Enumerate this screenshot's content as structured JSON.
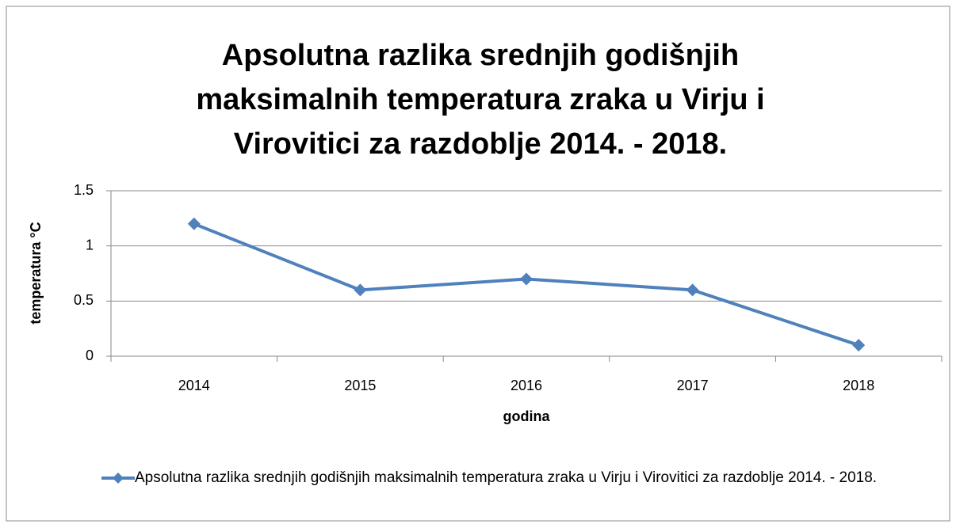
{
  "chart_data": {
    "type": "line",
    "title": "Apsolutna razlika srednjih godišnjih maksimalnih temperatura zraka u Virju i Virovitici za razdoblje 2014. - 2018.",
    "x_label": "godina",
    "y_label": "temperatura °C",
    "categories": [
      "2014",
      "2015",
      "2016",
      "2017",
      "2018"
    ],
    "series": [
      {
        "name": "Apsolutna razlika srednjih godišnjih maksimalnih temperatura zraka u Virju i Virovitici za razdoblje 2014. - 2018.",
        "color": "#4f81bd",
        "values": [
          1.2,
          0.6,
          0.7,
          0.6,
          0.1
        ]
      }
    ],
    "ylim": [
      0,
      1.5
    ],
    "yticks": [
      0,
      0.5,
      1,
      1.5
    ],
    "grid": true,
    "legend": "bottom"
  }
}
